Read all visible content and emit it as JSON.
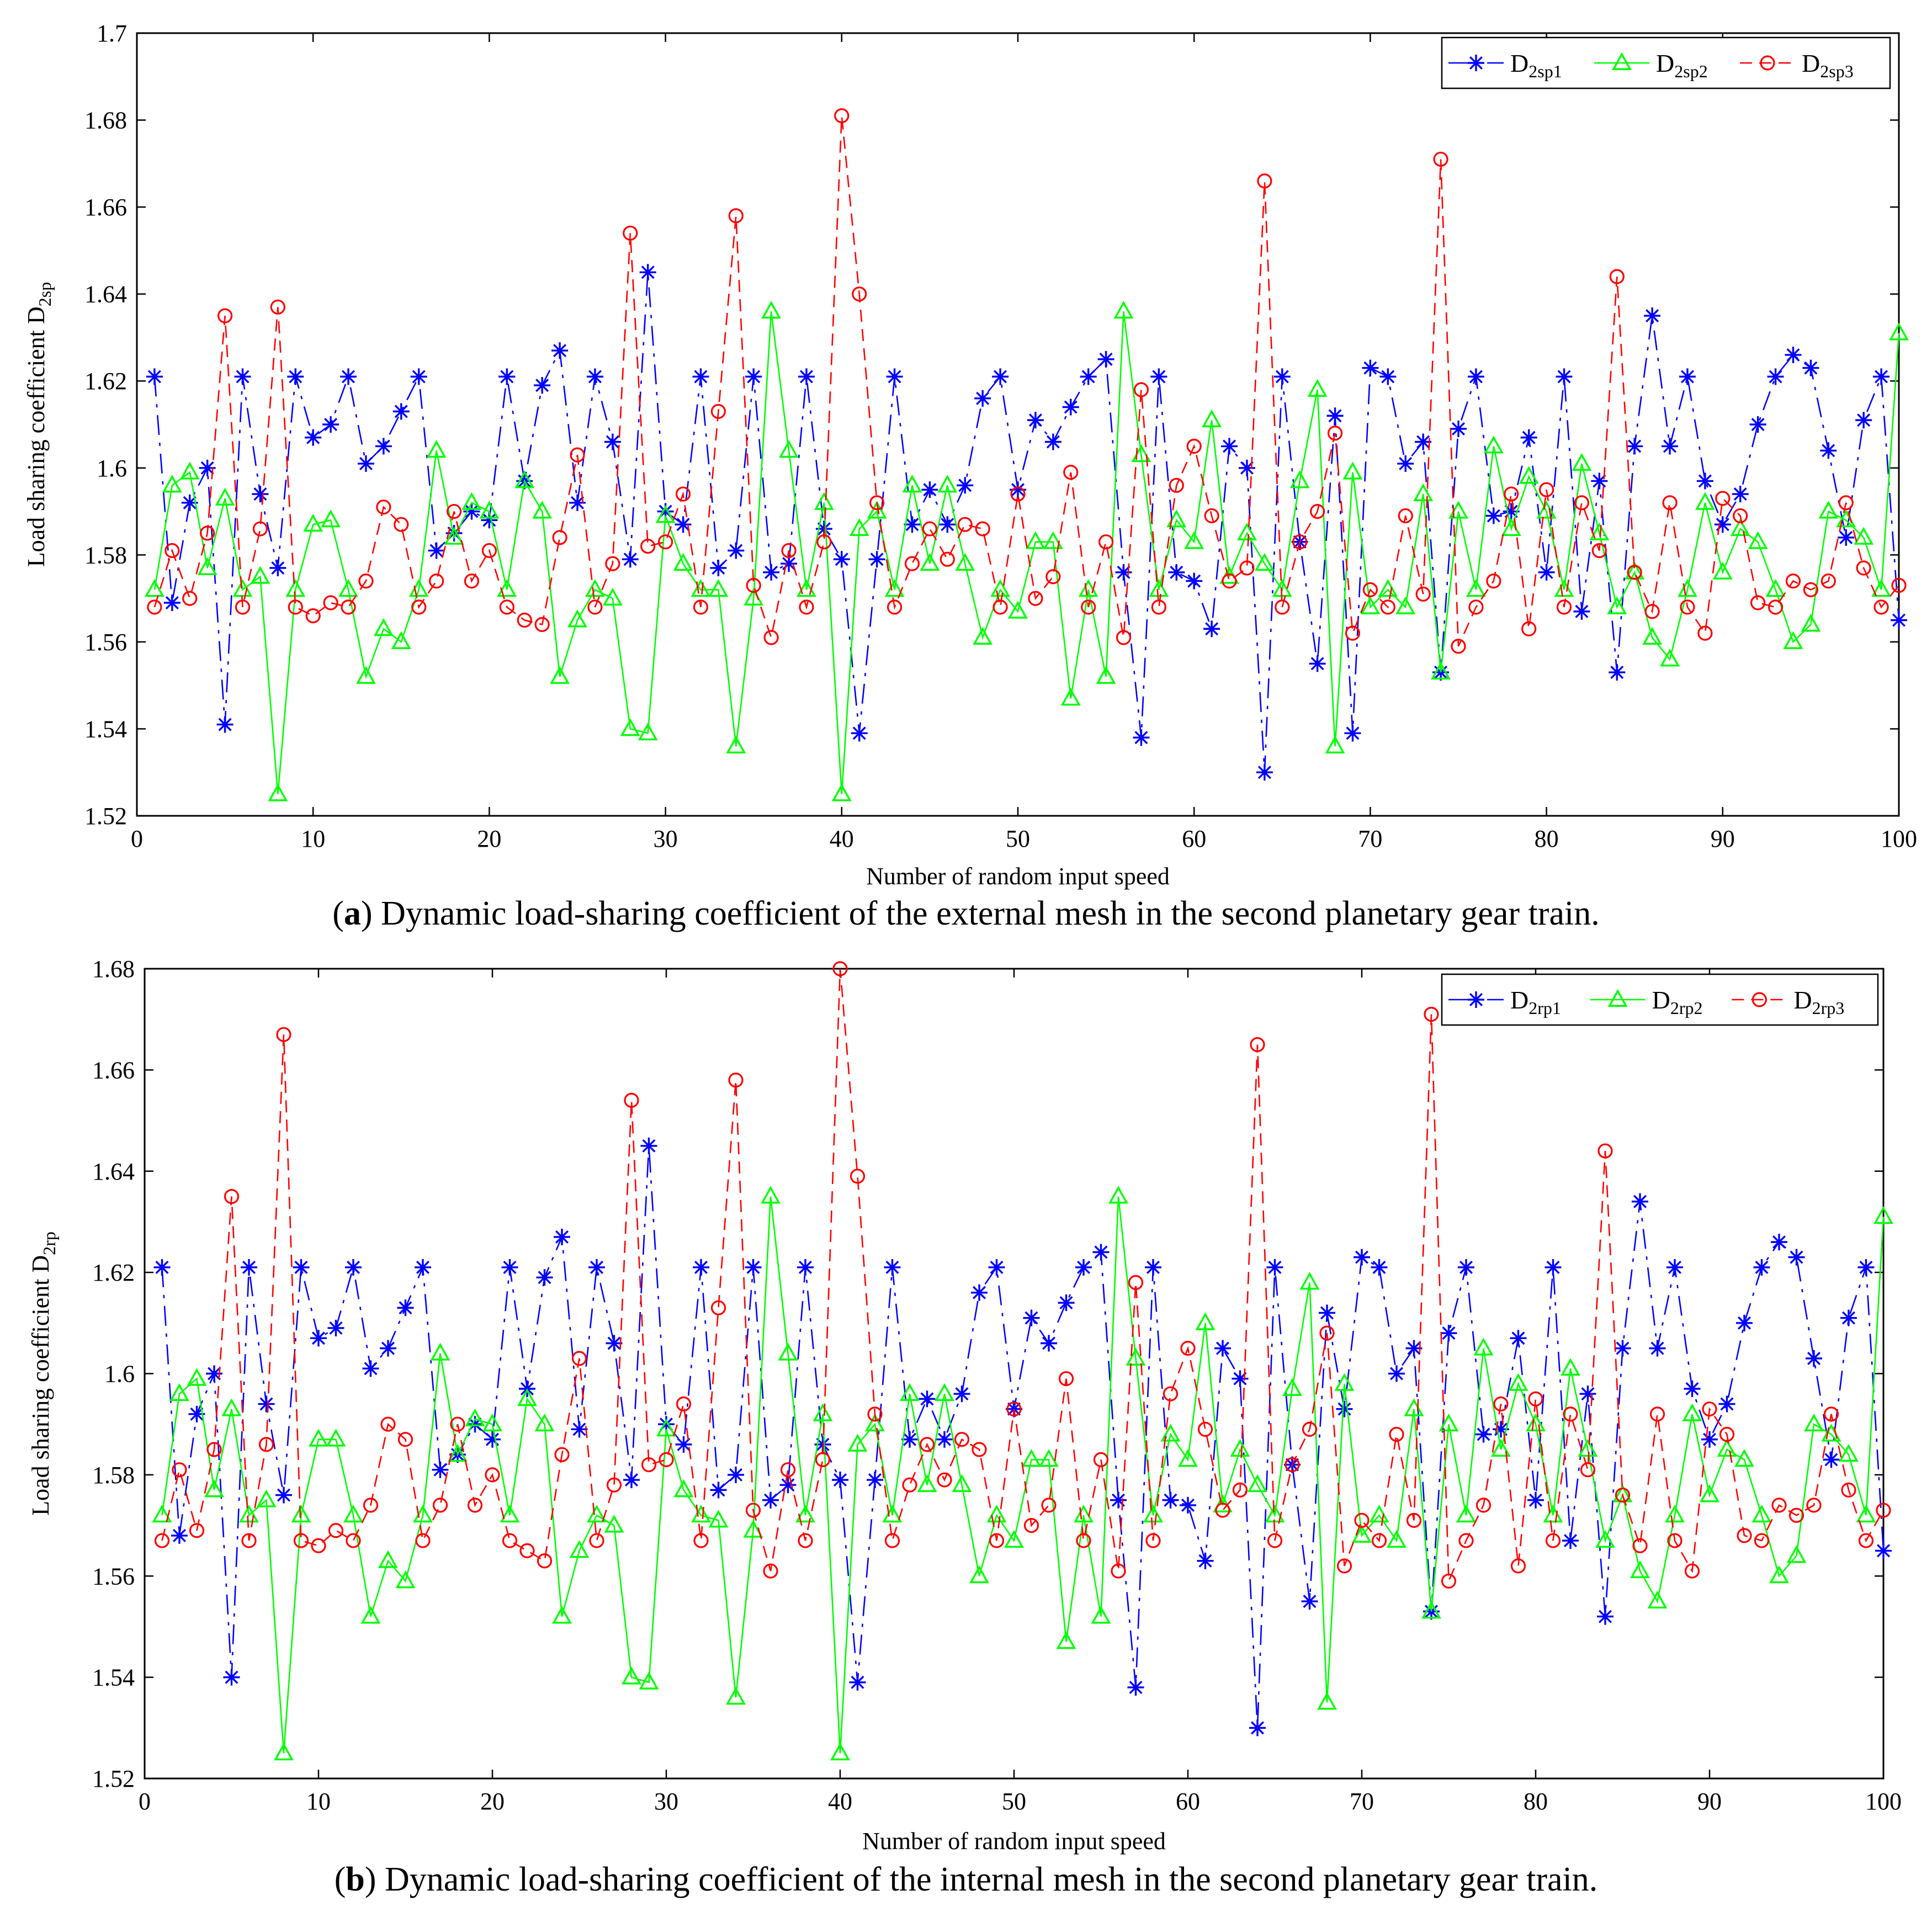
{
  "chart_data": [
    {
      "type": "line",
      "id": "a",
      "caption_letter": "a",
      "caption_text": "Dynamic load-sharing coefficient of the external mesh in the second planetary gear train.",
      "xlabel": "Number of random input speed",
      "ylabel": "Load sharing coefficient D",
      "ylabel_sub": "2sp",
      "xlim": [
        0,
        100
      ],
      "ylim": [
        1.52,
        1.7
      ],
      "xticks": [
        0,
        10,
        20,
        30,
        40,
        50,
        60,
        70,
        80,
        90,
        100
      ],
      "yticks": [
        1.52,
        1.54,
        1.56,
        1.58,
        1.6,
        1.62,
        1.64,
        1.66,
        1.68,
        1.7
      ],
      "ytick_labels": [
        "1.52",
        "1.54",
        "1.56",
        "1.58",
        "1.6",
        "1.62",
        "1.64",
        "1.66",
        "1.68",
        "1.7"
      ],
      "legend_position": "top-right",
      "series": [
        {
          "name": "D2sp1",
          "label_main": "D",
          "label_sub": "2sp1",
          "color": "#0000ff",
          "marker": "asterisk",
          "dash": "dashdot",
          "values": [
            1.621,
            1.569,
            1.592,
            1.6,
            1.541,
            1.621,
            1.594,
            1.577,
            1.621,
            1.607,
            1.61,
            1.621,
            1.601,
            1.605,
            1.613,
            1.621,
            1.581,
            1.585,
            1.59,
            1.588,
            1.621,
            1.597,
            1.619,
            1.627,
            1.592,
            1.621,
            1.606,
            1.579,
            1.645,
            1.59,
            1.587,
            1.621,
            1.577,
            1.581,
            1.621,
            1.576,
            1.578,
            1.621,
            1.586,
            1.579,
            1.539,
            1.579,
            1.621,
            1.587,
            1.595,
            1.587,
            1.596,
            1.616,
            1.621,
            1.595,
            1.611,
            1.606,
            1.614,
            1.621,
            1.625,
            1.576,
            1.538,
            1.621,
            1.576,
            1.574,
            1.563,
            1.605,
            1.6,
            1.53,
            1.621,
            1.583,
            1.555,
            1.612,
            1.539,
            1.623,
            1.621,
            1.601,
            1.606,
            1.553,
            1.609,
            1.621,
            1.589,
            1.59,
            1.607,
            1.576,
            1.621,
            1.567,
            1.597,
            1.553,
            1.605,
            1.635,
            1.605,
            1.621,
            1.597,
            1.587,
            1.594,
            1.61,
            1.621,
            1.626,
            1.623,
            1.604,
            1.584,
            1.611,
            1.621,
            1.565
          ]
        },
        {
          "name": "D2sp2",
          "label_main": "D",
          "label_sub": "2sp2",
          "color": "#00ff00",
          "marker": "triangle",
          "dash": "solid",
          "values": [
            1.572,
            1.596,
            1.599,
            1.577,
            1.593,
            1.572,
            1.575,
            1.525,
            1.572,
            1.587,
            1.588,
            1.572,
            1.552,
            1.563,
            1.56,
            1.572,
            1.604,
            1.584,
            1.592,
            1.59,
            1.572,
            1.597,
            1.59,
            1.552,
            1.565,
            1.572,
            1.57,
            1.54,
            1.539,
            1.589,
            1.578,
            1.572,
            1.572,
            1.536,
            1.57,
            1.636,
            1.604,
            1.572,
            1.592,
            1.525,
            1.586,
            1.59,
            1.572,
            1.596,
            1.578,
            1.596,
            1.578,
            1.561,
            1.572,
            1.567,
            1.583,
            1.583,
            1.547,
            1.572,
            1.552,
            1.636,
            1.603,
            1.572,
            1.588,
            1.583,
            1.611,
            1.575,
            1.585,
            1.578,
            1.572,
            1.597,
            1.618,
            1.536,
            1.599,
            1.568,
            1.572,
            1.568,
            1.594,
            1.553,
            1.59,
            1.572,
            1.605,
            1.586,
            1.598,
            1.59,
            1.572,
            1.601,
            1.585,
            1.568,
            1.576,
            1.561,
            1.556,
            1.572,
            1.592,
            1.576,
            1.586,
            1.583,
            1.572,
            1.56,
            1.564,
            1.59,
            1.588,
            1.584,
            1.572,
            1.631
          ]
        },
        {
          "name": "D2sp3",
          "label_main": "D",
          "label_sub": "2sp3",
          "color": "#ff0000",
          "marker": "circle",
          "dash": "dashed",
          "values": [
            1.568,
            1.581,
            1.57,
            1.585,
            1.635,
            1.568,
            1.586,
            1.637,
            1.568,
            1.566,
            1.569,
            1.568,
            1.574,
            1.591,
            1.587,
            1.568,
            1.574,
            1.59,
            1.574,
            1.581,
            1.568,
            1.565,
            1.564,
            1.584,
            1.603,
            1.568,
            1.578,
            1.654,
            1.582,
            1.583,
            1.594,
            1.568,
            1.613,
            1.658,
            1.573,
            1.561,
            1.581,
            1.568,
            1.583,
            1.681,
            1.64,
            1.592,
            1.568,
            1.578,
            1.586,
            1.579,
            1.587,
            1.586,
            1.568,
            1.594,
            1.57,
            1.575,
            1.599,
            1.568,
            1.583,
            1.561,
            1.618,
            1.568,
            1.596,
            1.605,
            1.589,
            1.574,
            1.577,
            1.666,
            1.568,
            1.583,
            1.59,
            1.608,
            1.562,
            1.572,
            1.568,
            1.589,
            1.571,
            1.671,
            1.559,
            1.568,
            1.574,
            1.594,
            1.563,
            1.595,
            1.568,
            1.592,
            1.581,
            1.644,
            1.576,
            1.567,
            1.592,
            1.568,
            1.562,
            1.593,
            1.589,
            1.569,
            1.568,
            1.574,
            1.572,
            1.574,
            1.592,
            1.577,
            1.568,
            1.573
          ]
        }
      ]
    },
    {
      "type": "line",
      "id": "b",
      "caption_letter": "b",
      "caption_text": "Dynamic load-sharing coefficient of the internal mesh in the second planetary gear train.",
      "xlabel": "Number of random input speed",
      "ylabel": "Load sharing coefficient D",
      "ylabel_sub": "2rp",
      "xlim": [
        0,
        100
      ],
      "ylim": [
        1.52,
        1.68
      ],
      "xticks": [
        0,
        10,
        20,
        30,
        40,
        50,
        60,
        70,
        80,
        90,
        100
      ],
      "yticks": [
        1.52,
        1.54,
        1.56,
        1.58,
        1.6,
        1.62,
        1.64,
        1.66,
        1.68
      ],
      "ytick_labels": [
        "1.52",
        "1.54",
        "1.56",
        "1.58",
        "1.6",
        "1.62",
        "1.64",
        "1.66",
        "1.68"
      ],
      "legend_position": "top-right",
      "series": [
        {
          "name": "D2rp1",
          "label_main": "D",
          "label_sub": "2rp1",
          "color": "#0000ff",
          "marker": "asterisk",
          "dash": "dashdot",
          "values": [
            1.621,
            1.568,
            1.592,
            1.6,
            1.54,
            1.621,
            1.594,
            1.576,
            1.621,
            1.607,
            1.609,
            1.621,
            1.601,
            1.605,
            1.613,
            1.621,
            1.581,
            1.584,
            1.59,
            1.587,
            1.621,
            1.597,
            1.619,
            1.627,
            1.589,
            1.621,
            1.606,
            1.579,
            1.645,
            1.59,
            1.586,
            1.621,
            1.577,
            1.58,
            1.621,
            1.575,
            1.578,
            1.621,
            1.586,
            1.579,
            1.539,
            1.579,
            1.621,
            1.587,
            1.595,
            1.587,
            1.596,
            1.616,
            1.621,
            1.593,
            1.611,
            1.606,
            1.614,
            1.621,
            1.624,
            1.575,
            1.538,
            1.621,
            1.575,
            1.574,
            1.563,
            1.605,
            1.599,
            1.53,
            1.621,
            1.582,
            1.555,
            1.612,
            1.593,
            1.623,
            1.621,
            1.6,
            1.605,
            1.553,
            1.608,
            1.621,
            1.588,
            1.589,
            1.607,
            1.575,
            1.621,
            1.567,
            1.596,
            1.552,
            1.605,
            1.634,
            1.605,
            1.621,
            1.597,
            1.587,
            1.594,
            1.61,
            1.621,
            1.626,
            1.623,
            1.603,
            1.583,
            1.611,
            1.621,
            1.565
          ]
        },
        {
          "name": "D2rp2",
          "label_main": "D",
          "label_sub": "2rp2",
          "color": "#00ff00",
          "marker": "triangle",
          "dash": "solid",
          "values": [
            1.572,
            1.596,
            1.599,
            1.577,
            1.593,
            1.572,
            1.575,
            1.525,
            1.572,
            1.587,
            1.587,
            1.572,
            1.552,
            1.563,
            1.559,
            1.572,
            1.604,
            1.584,
            1.591,
            1.59,
            1.572,
            1.595,
            1.59,
            1.552,
            1.565,
            1.572,
            1.57,
            1.54,
            1.539,
            1.589,
            1.577,
            1.572,
            1.571,
            1.536,
            1.569,
            1.635,
            1.604,
            1.572,
            1.592,
            1.525,
            1.586,
            1.59,
            1.572,
            1.596,
            1.578,
            1.596,
            1.578,
            1.56,
            1.572,
            1.567,
            1.583,
            1.583,
            1.547,
            1.572,
            1.552,
            1.635,
            1.603,
            1.572,
            1.588,
            1.583,
            1.61,
            1.574,
            1.585,
            1.578,
            1.572,
            1.597,
            1.618,
            1.535,
            1.598,
            1.568,
            1.572,
            1.567,
            1.593,
            1.553,
            1.59,
            1.572,
            1.605,
            1.585,
            1.598,
            1.59,
            1.572,
            1.601,
            1.585,
            1.567,
            1.576,
            1.561,
            1.555,
            1.572,
            1.592,
            1.576,
            1.585,
            1.583,
            1.572,
            1.56,
            1.564,
            1.59,
            1.588,
            1.584,
            1.572,
            1.631
          ]
        },
        {
          "name": "D2rp3",
          "label_main": "D",
          "label_sub": "2rp3",
          "color": "#ff0000",
          "marker": "circle",
          "dash": "dashed",
          "values": [
            1.567,
            1.581,
            1.569,
            1.585,
            1.635,
            1.567,
            1.586,
            1.667,
            1.567,
            1.566,
            1.569,
            1.567,
            1.574,
            1.59,
            1.587,
            1.567,
            1.574,
            1.59,
            1.574,
            1.58,
            1.567,
            1.565,
            1.563,
            1.584,
            1.603,
            1.567,
            1.578,
            1.654,
            1.582,
            1.583,
            1.594,
            1.567,
            1.613,
            1.658,
            1.573,
            1.561,
            1.581,
            1.567,
            1.583,
            1.68,
            1.639,
            1.592,
            1.567,
            1.578,
            1.586,
            1.579,
            1.587,
            1.585,
            1.567,
            1.593,
            1.57,
            1.574,
            1.599,
            1.567,
            1.583,
            1.561,
            1.618,
            1.567,
            1.596,
            1.605,
            1.589,
            1.573,
            1.577,
            1.665,
            1.567,
            1.582,
            1.589,
            1.608,
            1.562,
            1.571,
            1.567,
            1.588,
            1.571,
            1.671,
            1.559,
            1.567,
            1.574,
            1.594,
            1.562,
            1.595,
            1.567,
            1.592,
            1.581,
            1.644,
            1.576,
            1.566,
            1.592,
            1.567,
            1.561,
            1.593,
            1.588,
            1.568,
            1.567,
            1.574,
            1.572,
            1.574,
            1.592,
            1.577,
            1.567,
            1.573
          ]
        }
      ]
    }
  ]
}
